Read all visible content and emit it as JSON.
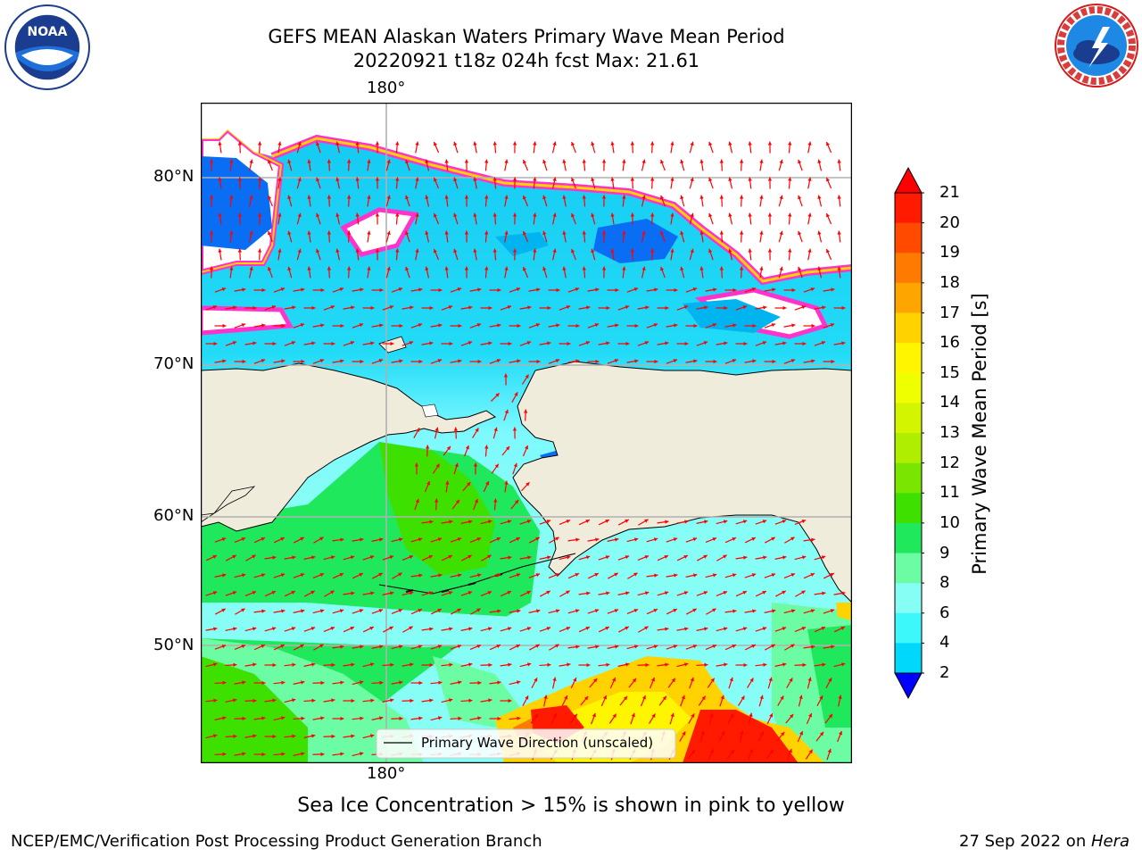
{
  "title_line1": "GEFS MEAN Alaskan Waters Primary Wave Mean Period",
  "title_line2": "20220921 t18z 024h fcst   Max: 21.61",
  "logos": {
    "noaa": {
      "text": "NOAA",
      "ring_text": "NATIONAL OCEANIC AND ATMOSPHERIC ADMINISTRATION · U.S. DEPARTMENT OF COMMERCE"
    },
    "nws": {
      "ring_text": "NATIONAL WEATHER SERVICE"
    }
  },
  "map": {
    "lon_label_top": "180°",
    "lon_label_bottom": "180°",
    "lat_labels": [
      "80°N",
      "70°N",
      "60°N",
      "50°N"
    ],
    "legend_label": "Primary Wave Direction (unscaled)",
    "colors": {
      "land": "#efecdc",
      "arrow": "#ff0000",
      "grid": "#b0b0b0"
    }
  },
  "colorbar": {
    "title": "Primary Wave Mean Period [s]",
    "ticks": [
      "21",
      "20",
      "19",
      "18",
      "17",
      "16",
      "15",
      "14",
      "13",
      "12",
      "11",
      "10",
      "9",
      "8",
      "6",
      "4",
      "2"
    ],
    "colors": [
      "#ff1a00",
      "#ff4a00",
      "#ff7a00",
      "#ffa500",
      "#ffd200",
      "#fff500",
      "#f0ff00",
      "#d4f500",
      "#b0ee00",
      "#7ae600",
      "#3ee000",
      "#20e85c",
      "#6cfca4",
      "#86fdf5",
      "#3cf8fb",
      "#00d8fb",
      "#0a6ef5"
    ],
    "under_color": "#0000ff",
    "over_color": "#ff0000"
  },
  "subtitle": "Sea Ice Concentration > 15% is shown in pink to yellow",
  "footer_left": "NCEP/EMC/Verification Post Processing Product Generation Branch",
  "footer_right_date": "27 Sep 2022 on ",
  "footer_right_host": "Hera"
}
